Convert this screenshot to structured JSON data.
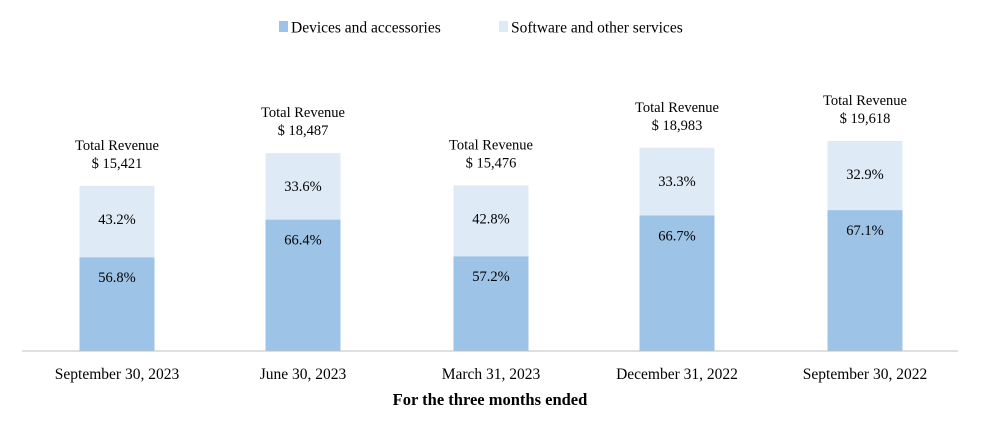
{
  "chart_data": {
    "type": "bar",
    "stacked": true,
    "percent_stacked": true,
    "xlabel": "For the three months ended",
    "ylabel": "",
    "grid": false,
    "legend_position": "top-center",
    "categories": [
      "September 30, 2023",
      "June 30, 2023",
      "March 31, 2023",
      "December 31, 2022",
      "September 30, 2022"
    ],
    "total_revenue_prefix": "Total Revenue",
    "total_revenue_labels": [
      "$ 15,421",
      "$ 18,487",
      "$ 15,476",
      "$ 18,983",
      "$ 19,618"
    ],
    "total_revenue": [
      15421,
      18487,
      15476,
      18983,
      19618
    ],
    "series": [
      {
        "name": "Devices and accessories",
        "values": [
          56.8,
          66.4,
          57.2,
          66.7,
          67.1
        ],
        "labels": [
          "56.8%",
          "66.4%",
          "57.2%",
          "66.7%",
          "67.1%"
        ],
        "color": "#9dc3e6"
      },
      {
        "name": "Software and other services",
        "values": [
          43.2,
          33.6,
          42.8,
          33.3,
          32.9
        ],
        "labels": [
          "43.2%",
          "33.6%",
          "42.8%",
          "33.3%",
          "32.9%"
        ],
        "color": "#deebf7"
      }
    ]
  }
}
